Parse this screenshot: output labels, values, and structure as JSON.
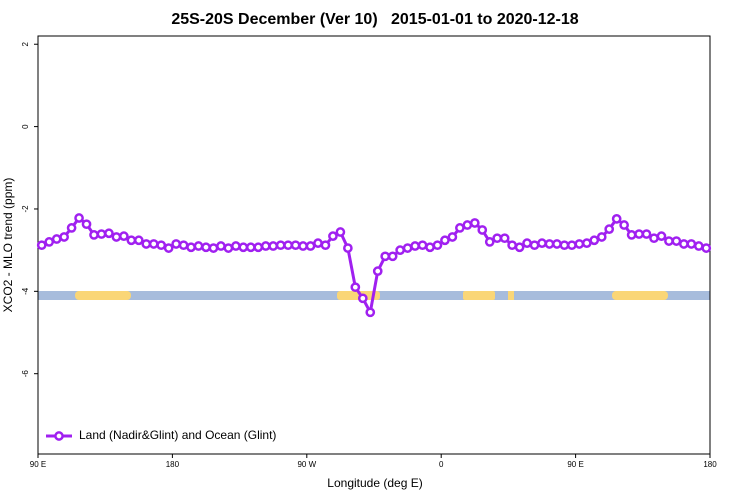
{
  "chart_data": {
    "type": "line",
    "title": "25S-20S December (Ver 10)   2015-01-01 to 2020-12-18",
    "x_label": "Longitude (deg E)",
    "y_label": "XCO2 - MLO trend (ppm)",
    "xlim": [
      90,
      540
    ],
    "xticks": [
      {
        "value": 90,
        "label": "90 E"
      },
      180,
      {
        "value": 270,
        "label": "90 W"
      },
      {
        "value": 360,
        "label": "0"
      },
      {
        "value": 450,
        "label": "90 E"
      },
      {
        "value": 540,
        "label": "180"
      }
    ],
    "ylim": [
      -7.95,
      2.2
    ],
    "yticks": [
      -6,
      -4,
      -2,
      0,
      2
    ],
    "legend": "bottom-left",
    "series": [
      {
        "name": "Land (Nadir&Glint) and Ocean (Glint)",
        "color": "#a020f0",
        "x": [
          92.5,
          97.5,
          102.5,
          107.5,
          112.5,
          117.5,
          122.5,
          127.5,
          132.5,
          137.5,
          142.5,
          147.5,
          152.5,
          157.5,
          162.5,
          167.5,
          172.5,
          177.5,
          182.5,
          187.5,
          192.5,
          197.5,
          202.5,
          207.5,
          212.5,
          217.5,
          222.5,
          227.5,
          232.5,
          237.5,
          242.5,
          247.5,
          252.5,
          257.5,
          262.5,
          267.5,
          272.5,
          277.5,
          282.5,
          287.5,
          292.5,
          297.5,
          302.5,
          307.5,
          312.5,
          317.5,
          322.5,
          327.5,
          332.5,
          337.5,
          342.5,
          347.5,
          352.5,
          357.5,
          362.5,
          367.5,
          372.5,
          377.5,
          382.5,
          387.5,
          392.5,
          397.5,
          402.5,
          407.5,
          412.5,
          417.5,
          422.5,
          427.5,
          432.5,
          437.5,
          442.5,
          447.5,
          452.5,
          457.5,
          462.5,
          467.5,
          472.5,
          477.5,
          482.5,
          487.5,
          492.5,
          497.5,
          502.5,
          507.5,
          512.5,
          517.5,
          522.5,
          527.5,
          532.5,
          537.5
        ],
        "values": [
          -2.88,
          -2.8,
          -2.73,
          -2.68,
          -2.46,
          -2.22,
          -2.37,
          -2.63,
          -2.61,
          -2.59,
          -2.68,
          -2.66,
          -2.76,
          -2.76,
          -2.85,
          -2.85,
          -2.88,
          -2.95,
          -2.85,
          -2.88,
          -2.93,
          -2.9,
          -2.93,
          -2.95,
          -2.9,
          -2.95,
          -2.9,
          -2.93,
          -2.93,
          -2.93,
          -2.9,
          -2.9,
          -2.88,
          -2.88,
          -2.88,
          -2.9,
          -2.9,
          -2.83,
          -2.88,
          -2.66,
          -2.56,
          -2.95,
          -3.9,
          -4.17,
          -4.51,
          -3.51,
          -3.15,
          -3.15,
          -3.0,
          -2.95,
          -2.9,
          -2.88,
          -2.93,
          -2.88,
          -2.76,
          -2.68,
          -2.46,
          -2.39,
          -2.34,
          -2.51,
          -2.8,
          -2.71,
          -2.71,
          -2.88,
          -2.93,
          -2.83,
          -2.88,
          -2.83,
          -2.85,
          -2.85,
          -2.88,
          -2.88,
          -2.85,
          -2.83,
          -2.76,
          -2.68,
          -2.49,
          -2.24,
          -2.39,
          -2.63,
          -2.61,
          -2.61,
          -2.71,
          -2.66,
          -2.78,
          -2.78,
          -2.85,
          -2.85,
          -2.9,
          -2.95
        ]
      }
    ]
  }
}
